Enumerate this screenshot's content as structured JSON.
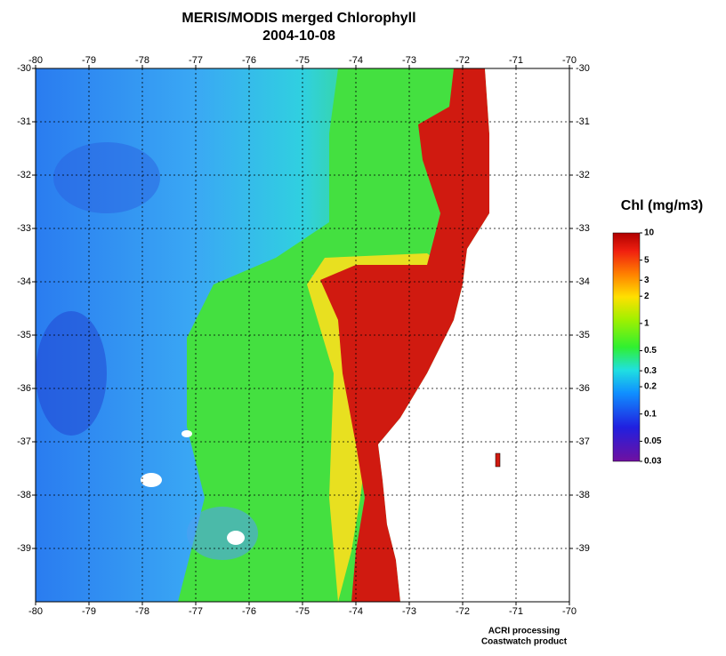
{
  "title": "MERIS/MODIS merged Chlorophyll",
  "subtitle": "2004-10-08",
  "map": {
    "lon_range": [
      -80,
      -70
    ],
    "lat_range": [
      -30,
      -40
    ],
    "lon_ticks": [
      -80,
      -79,
      -78,
      -77,
      -76,
      -75,
      -74,
      -73,
      -72,
      -71,
      -70
    ],
    "lat_ticks": [
      -30,
      -31,
      -32,
      -33,
      -34,
      -35,
      -36,
      -37,
      -38,
      -39
    ],
    "grid": true
  },
  "colorbar": {
    "title": "Chl (mg/m3)",
    "range": [
      0.03,
      10
    ],
    "scale": "log",
    "ticks": [
      10,
      5,
      3,
      2,
      1,
      0.5,
      0.3,
      0.2,
      0.1,
      0.05,
      0.03
    ]
  },
  "credits": [
    "ACRI processing",
    "Coastwatch product"
  ]
}
